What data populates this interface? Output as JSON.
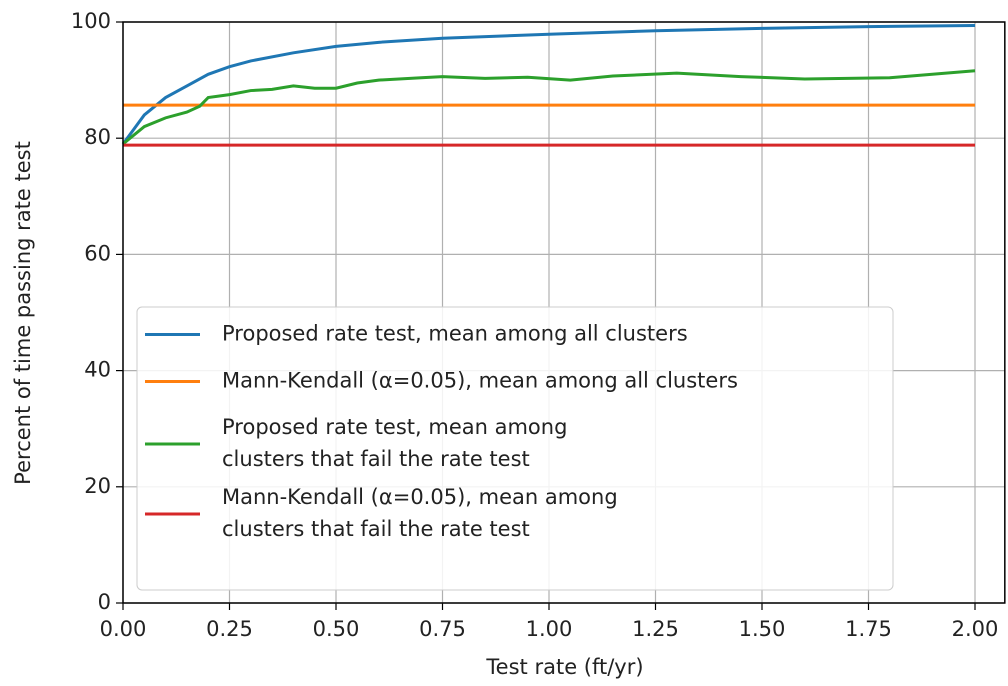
{
  "chart_data": {
    "type": "line",
    "xlabel": "Test rate (ft/yr)",
    "ylabel": "Percent of time passing rate test",
    "xlim": [
      0,
      2.07
    ],
    "ylim": [
      0,
      100
    ],
    "xticks": [
      {
        "value": 0,
        "label": "0.00"
      },
      {
        "value": 0.25,
        "label": "0.25"
      },
      {
        "value": 0.5,
        "label": "0.50"
      },
      {
        "value": 0.75,
        "label": "0.75"
      },
      {
        "value": 1,
        "label": "1.00"
      },
      {
        "value": 1.25,
        "label": "1.25"
      },
      {
        "value": 1.5,
        "label": "1.50"
      },
      {
        "value": 1.75,
        "label": "1.75"
      },
      {
        "value": 2,
        "label": "2.00"
      }
    ],
    "yticks": [
      0,
      20,
      40,
      60,
      80,
      100
    ],
    "grid": true,
    "legend": "lower-left",
    "series": [
      {
        "name": [
          "Proposed rate test, mean among all clusters"
        ],
        "color": "#1f77b4",
        "x": [
          0,
          0.05,
          0.1,
          0.15,
          0.2,
          0.25,
          0.3,
          0.4,
          0.5,
          0.6,
          0.75,
          1,
          1.25,
          1.5,
          1.75,
          2
        ],
        "values": [
          79,
          84,
          87,
          89,
          91,
          92.3,
          93.3,
          94.7,
          95.8,
          96.5,
          97.2,
          97.9,
          98.5,
          98.9,
          99.2,
          99.4
        ]
      },
      {
        "name": [
          "Mann-Kendall (α=0.05), mean among all clusters"
        ],
        "color": "#ff7f0e",
        "x": [
          0,
          2
        ],
        "values": [
          85.7,
          85.7
        ]
      },
      {
        "name": [
          "Proposed rate test, mean among",
          "clusters that fail the rate test"
        ],
        "color": "#2ca02c",
        "x": [
          0,
          0.05,
          0.1,
          0.15,
          0.18,
          0.2,
          0.25,
          0.3,
          0.35,
          0.4,
          0.45,
          0.5,
          0.55,
          0.6,
          0.7,
          0.75,
          0.85,
          0.95,
          1.05,
          1.15,
          1.3,
          1.45,
          1.6,
          1.8,
          2
        ],
        "values": [
          79,
          82,
          83.5,
          84.5,
          85.5,
          87,
          87.5,
          88.2,
          88.4,
          89,
          88.6,
          88.6,
          89.5,
          90,
          90.4,
          90.6,
          90.3,
          90.5,
          90,
          90.7,
          91.2,
          90.6,
          90.2,
          90.4,
          91.6
        ]
      },
      {
        "name": [
          "Mann-Kendall (α=0.05), mean among",
          "clusters that fail the rate test"
        ],
        "color": "#d62728",
        "x": [
          0,
          2
        ],
        "values": [
          78.8,
          78.8
        ]
      }
    ]
  }
}
